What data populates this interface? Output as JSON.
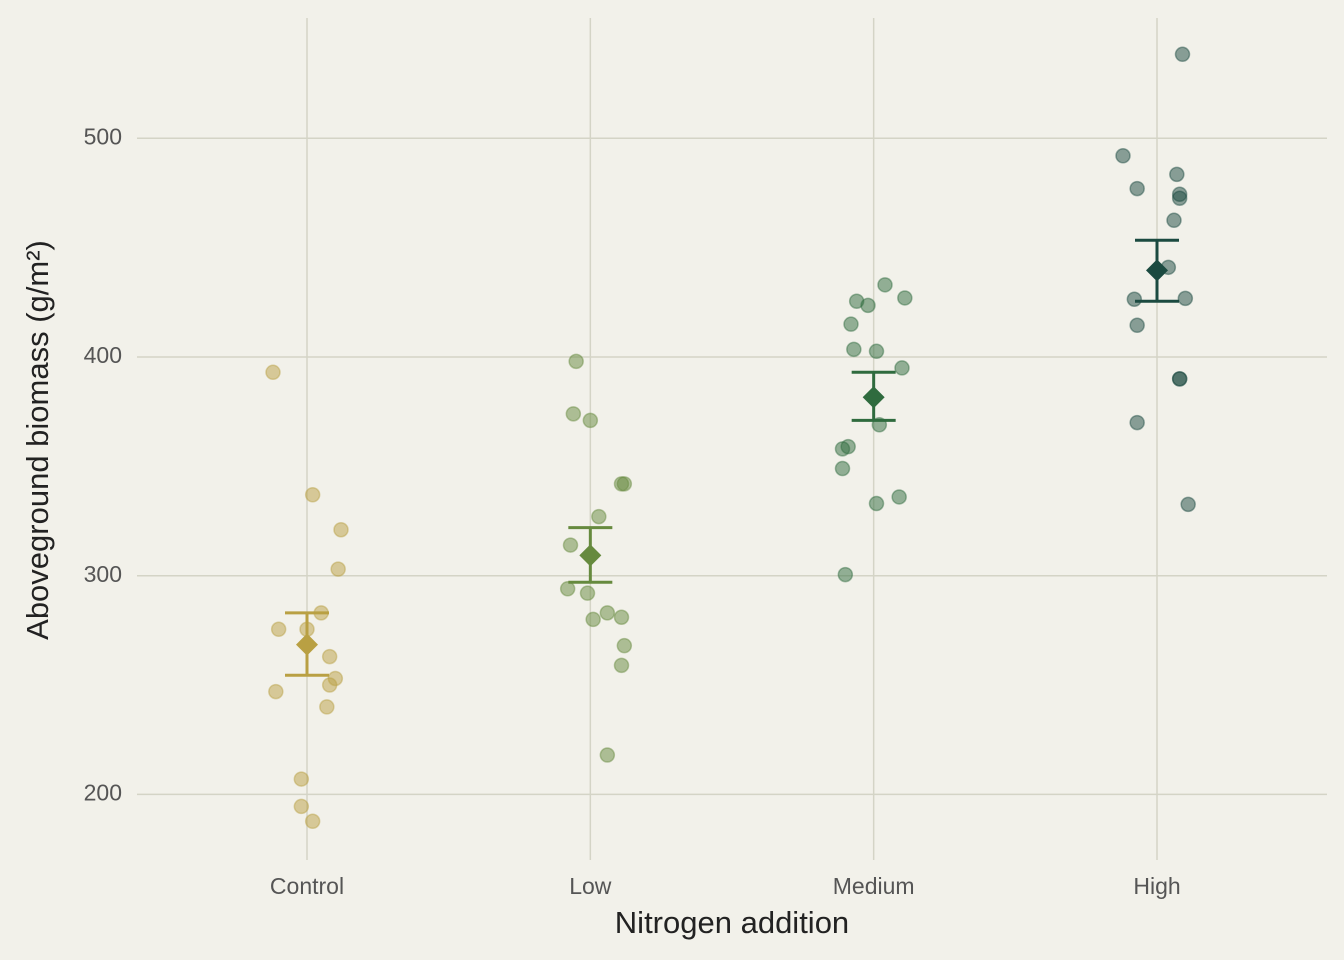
{
  "chart_data": {
    "type": "strip",
    "x_label": "Nitrogen addition",
    "y_label": "Aboveground biomass (g/m²)",
    "xlim": [
      0.4,
      4.6
    ],
    "xticks": [
      {
        "value": 1,
        "label": "Control"
      },
      {
        "value": 2,
        "label": "Low"
      },
      {
        "value": 3,
        "label": "Medium"
      },
      {
        "value": 4,
        "label": "High"
      }
    ],
    "ylim": [
      170,
      555
    ],
    "yticks": [
      200,
      300,
      400,
      500
    ],
    "grid": true,
    "series": [
      {
        "color": "#b9a043",
        "x": [
          0.88,
          1.02,
          1.12,
          1.11,
          1.05,
          0.9,
          1.0,
          1.08,
          1.1,
          1.08,
          0.89,
          1.07,
          0.98,
          0.98,
          1.02
        ],
        "values": [
          393,
          337,
          321,
          303,
          283,
          275.5,
          275.5,
          263,
          253,
          250,
          247,
          240,
          207,
          194.5,
          187.7
        ],
        "mean": 268.5,
        "err_low": 254.5,
        "err_high": 283
      },
      {
        "color": "#668a3e",
        "x": [
          1.95,
          1.94,
          2.0,
          2.11,
          2.12,
          2.03,
          1.93,
          1.92,
          1.99,
          2.06,
          2.11,
          2.01,
          2.12,
          2.11,
          2.06
        ],
        "values": [
          398,
          374,
          371,
          342,
          342,
          327,
          314,
          294,
          292,
          283,
          281,
          280,
          268,
          259,
          218
        ],
        "mean": 309.3,
        "err_low": 297,
        "err_high": 322
      },
      {
        "color": "#2f6b3e",
        "x": [
          3.04,
          3.11,
          2.94,
          2.98,
          2.92,
          2.93,
          3.01,
          3.1,
          3.02,
          2.91,
          2.89,
          2.89,
          3.09,
          3.01,
          2.9
        ],
        "values": [
          433,
          427,
          425.5,
          423.6,
          415,
          403.5,
          402.6,
          395,
          369,
          359,
          358,
          349,
          336,
          333,
          300.5
        ],
        "mean": 381.6,
        "err_low": 371,
        "err_high": 393
      },
      {
        "color": "#1b4a40",
        "x": [
          4.09,
          3.88,
          4.07,
          3.93,
          4.08,
          4.08,
          4.06,
          4.04,
          3.92,
          4.1,
          3.93,
          4.08,
          4.08,
          3.93,
          4.11
        ],
        "values": [
          538.4,
          492,
          483.5,
          477,
          474.4,
          472.6,
          462.5,
          441,
          426.4,
          426.8,
          414.5,
          390,
          390,
          370,
          332.6
        ],
        "mean": 439.6,
        "err_low": 425.5,
        "err_high": 453.4
      }
    ]
  }
}
